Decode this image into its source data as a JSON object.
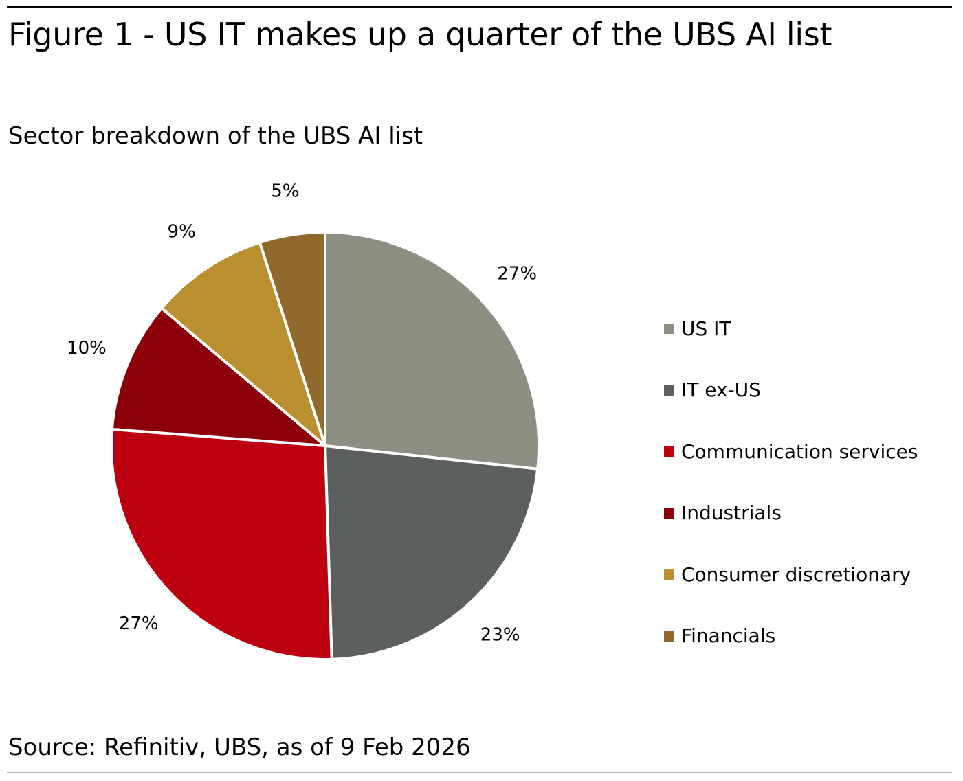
{
  "figure": {
    "title": "Figure 1 - US IT makes up a quarter of the UBS AI list",
    "subtitle": "Sector breakdown of the UBS AI list",
    "source": "Source: Refinitiv, UBS, as of 9 Feb 2026"
  },
  "chart_data": {
    "type": "pie",
    "title": "Figure 1 - US IT makes up a quarter of the UBS AI list",
    "subtitle": "Sector breakdown of the UBS AI list",
    "legend_position": "right",
    "slices": [
      {
        "label": "US IT",
        "value": 27,
        "display": "27%",
        "color": "#8f8e82"
      },
      {
        "label": "IT ex-US",
        "value": 23,
        "display": "23%",
        "color": "#5b5f5d"
      },
      {
        "label": "Communication services",
        "value": 27,
        "display": "27%",
        "color": "#bc0010"
      },
      {
        "label": "Industrials",
        "value": 10,
        "display": "10%",
        "color": "#8b0008"
      },
      {
        "label": "Consumer discretionary",
        "value": 9,
        "display": "9%",
        "color": "#b98f30"
      },
      {
        "label": "Financials",
        "value": 5,
        "display": "5%",
        "color": "#91692c"
      }
    ]
  }
}
